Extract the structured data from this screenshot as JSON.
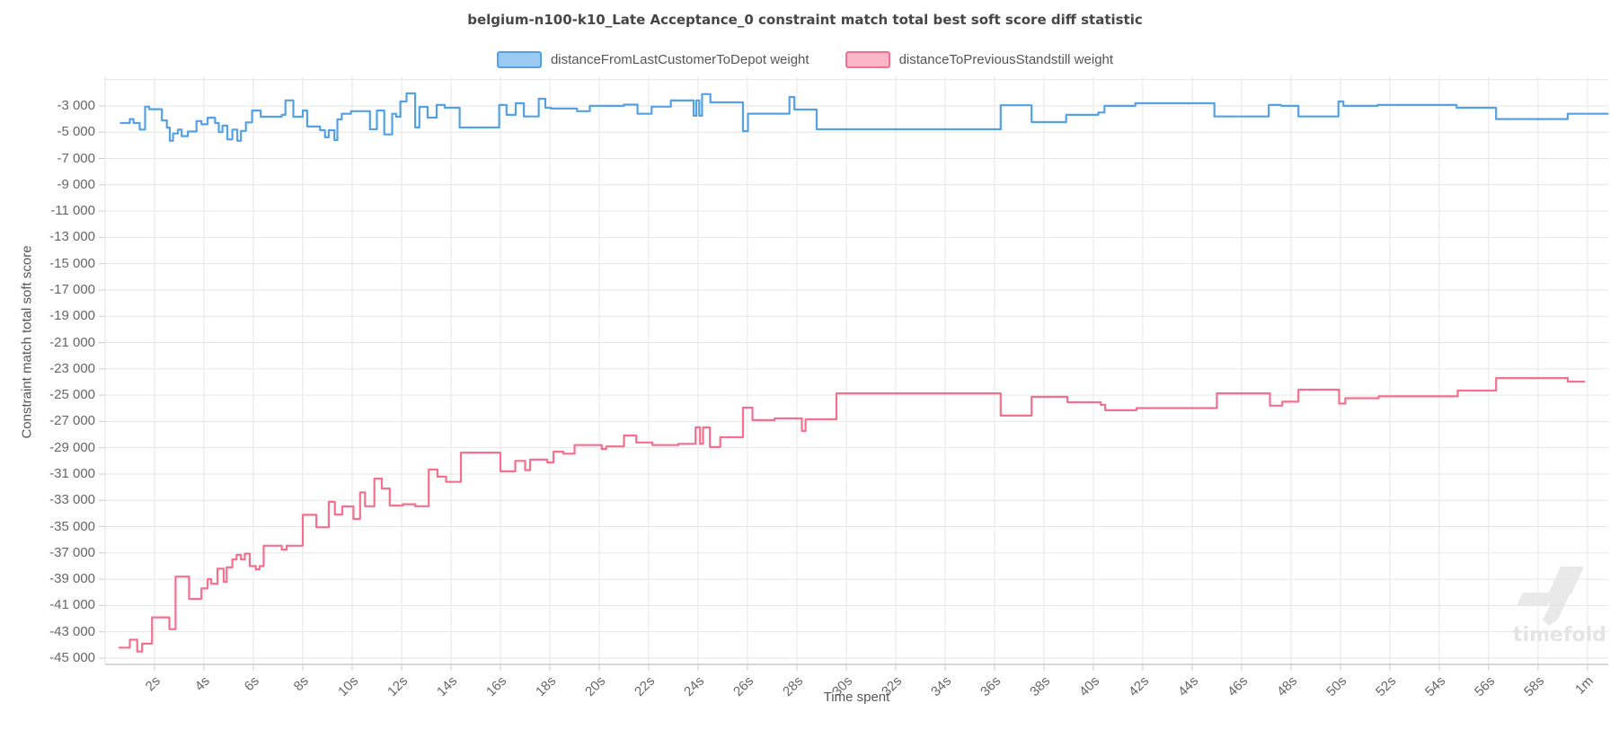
{
  "title": "belgium-n100-k10_Late Acceptance_0 constraint match total best soft score diff statistic",
  "watermark": "timefold",
  "legend": [
    {
      "label": "distanceFromLastCustomerToDepot weight",
      "fill": "#9ac9f1",
      "border": "#54a1e6"
    },
    {
      "label": "distanceToPreviousStandstill weight",
      "fill": "#f9b7c8",
      "border": "#f4708e"
    }
  ],
  "chart_data": {
    "type": "line",
    "step": true,
    "title": "belgium-n100-k10_Late Acceptance_0 constraint match total best soft score diff statistic",
    "xlabel": "Time spent",
    "ylabel": "Constraint match total soft score",
    "xlim": [
      0,
      60.84
    ],
    "ylim": [
      -45480,
      -750
    ],
    "grid": true,
    "legend_position": "top",
    "x_ticks": [
      {
        "t": 2,
        "label": "2s"
      },
      {
        "t": 4,
        "label": "4s"
      },
      {
        "t": 6,
        "label": "6s"
      },
      {
        "t": 8,
        "label": "8s"
      },
      {
        "t": 10,
        "label": "10s"
      },
      {
        "t": 12,
        "label": "12s"
      },
      {
        "t": 14,
        "label": "14s"
      },
      {
        "t": 16,
        "label": "16s"
      },
      {
        "t": 18,
        "label": "18s"
      },
      {
        "t": 20,
        "label": "20s"
      },
      {
        "t": 22,
        "label": "22s"
      },
      {
        "t": 24,
        "label": "24s"
      },
      {
        "t": 26,
        "label": "26s"
      },
      {
        "t": 28,
        "label": "28s"
      },
      {
        "t": 30,
        "label": "30s"
      },
      {
        "t": 32,
        "label": "32s"
      },
      {
        "t": 34,
        "label": "34s"
      },
      {
        "t": 36,
        "label": "36s"
      },
      {
        "t": 38,
        "label": "38s"
      },
      {
        "t": 40,
        "label": "40s"
      },
      {
        "t": 42,
        "label": "42s"
      },
      {
        "t": 44,
        "label": "44s"
      },
      {
        "t": 46,
        "label": "46s"
      },
      {
        "t": 48,
        "label": "48s"
      },
      {
        "t": 50,
        "label": "50s"
      },
      {
        "t": 52,
        "label": "52s"
      },
      {
        "t": 54,
        "label": "54s"
      },
      {
        "t": 56,
        "label": "56s"
      },
      {
        "t": 58,
        "label": "58s"
      },
      {
        "t": 60,
        "label": "1m"
      }
    ],
    "y_ticks": [
      {
        "v": -1000,
        "label": ""
      },
      {
        "v": -3000,
        "label": "-3 000"
      },
      {
        "v": -5000,
        "label": "-5 000"
      },
      {
        "v": -7000,
        "label": "-7 000"
      },
      {
        "v": -9000,
        "label": "-9 000"
      },
      {
        "v": -11000,
        "label": "-11 000"
      },
      {
        "v": -13000,
        "label": "-13 000"
      },
      {
        "v": -15000,
        "label": "-15 000"
      },
      {
        "v": -17000,
        "label": "-17 000"
      },
      {
        "v": -19000,
        "label": "-19 000"
      },
      {
        "v": -21000,
        "label": "-21 000"
      },
      {
        "v": -23000,
        "label": "-23 000"
      },
      {
        "v": -25000,
        "label": "-25 000"
      },
      {
        "v": -27000,
        "label": "-27 000"
      },
      {
        "v": -29000,
        "label": "-29 000"
      },
      {
        "v": -31000,
        "label": "-31 000"
      },
      {
        "v": -33000,
        "label": "-33 000"
      },
      {
        "v": -35000,
        "label": "-35 000"
      },
      {
        "v": -37000,
        "label": "-37 000"
      },
      {
        "v": -39000,
        "label": "-39 000"
      },
      {
        "v": -41000,
        "label": "-41 000"
      },
      {
        "v": -43000,
        "label": "-43 000"
      },
      {
        "v": -45000,
        "label": "-45 000"
      }
    ],
    "series": [
      {
        "name": "distanceFromLastCustomerToDepot weight",
        "color": "#54a1e6",
        "points": [
          [
            0.6,
            -4300
          ],
          [
            1.0,
            -4000
          ],
          [
            1.15,
            -4300
          ],
          [
            1.4,
            -4800
          ],
          [
            1.62,
            -3050
          ],
          [
            1.78,
            -3250
          ],
          [
            2.3,
            -4100
          ],
          [
            2.5,
            -4650
          ],
          [
            2.62,
            -5650
          ],
          [
            2.75,
            -5100
          ],
          [
            2.95,
            -4800
          ],
          [
            3.1,
            -5300
          ],
          [
            3.35,
            -4950
          ],
          [
            3.7,
            -4150
          ],
          [
            3.9,
            -4400
          ],
          [
            4.15,
            -3900
          ],
          [
            4.45,
            -4300
          ],
          [
            4.6,
            -5000
          ],
          [
            4.75,
            -4500
          ],
          [
            4.95,
            -5550
          ],
          [
            5.15,
            -4800
          ],
          [
            5.35,
            -5650
          ],
          [
            5.5,
            -4900
          ],
          [
            5.7,
            -4250
          ],
          [
            5.95,
            -3350
          ],
          [
            6.3,
            -3820
          ],
          [
            7.15,
            -3680
          ],
          [
            7.3,
            -2580
          ],
          [
            7.62,
            -3820
          ],
          [
            8.0,
            -3350
          ],
          [
            8.18,
            -4570
          ],
          [
            8.7,
            -4850
          ],
          [
            8.9,
            -5390
          ],
          [
            9.05,
            -4850
          ],
          [
            9.28,
            -5600
          ],
          [
            9.4,
            -4030
          ],
          [
            9.58,
            -3600
          ],
          [
            9.95,
            -3400
          ],
          [
            10.72,
            -4780
          ],
          [
            11.0,
            -3350
          ],
          [
            11.3,
            -5170
          ],
          [
            11.62,
            -3600
          ],
          [
            11.78,
            -3820
          ],
          [
            11.95,
            -2660
          ],
          [
            12.2,
            -2050
          ],
          [
            12.55,
            -4640
          ],
          [
            12.72,
            -3070
          ],
          [
            13.05,
            -3890
          ],
          [
            13.42,
            -2930
          ],
          [
            13.75,
            -3140
          ],
          [
            14.35,
            -4640
          ],
          [
            15.95,
            -2930
          ],
          [
            16.25,
            -3680
          ],
          [
            16.62,
            -2800
          ],
          [
            16.95,
            -3800
          ],
          [
            17.55,
            -2460
          ],
          [
            17.82,
            -3140
          ],
          [
            18.05,
            -3200
          ],
          [
            19.1,
            -3400
          ],
          [
            19.62,
            -3000
          ],
          [
            21.0,
            -2900
          ],
          [
            21.55,
            -3600
          ],
          [
            22.12,
            -3060
          ],
          [
            22.9,
            -2590
          ],
          [
            23.82,
            -3750
          ],
          [
            23.93,
            -2590
          ],
          [
            24.05,
            -3750
          ],
          [
            24.16,
            -2100
          ],
          [
            24.5,
            -2730
          ],
          [
            25.82,
            -4920
          ],
          [
            26.02,
            -3590
          ],
          [
            27.7,
            -2320
          ],
          [
            27.9,
            -3280
          ],
          [
            28.8,
            -4780
          ],
          [
            36.25,
            -2950
          ],
          [
            37.5,
            -4230
          ],
          [
            38.9,
            -3680
          ],
          [
            40.2,
            -3500
          ],
          [
            40.45,
            -3000
          ],
          [
            41.7,
            -2800
          ],
          [
            44.9,
            -3800
          ],
          [
            47.1,
            -2930
          ],
          [
            47.6,
            -3000
          ],
          [
            48.3,
            -3800
          ],
          [
            49.92,
            -2660
          ],
          [
            50.12,
            -3000
          ],
          [
            51.5,
            -2930
          ],
          [
            54.7,
            -3140
          ],
          [
            56.3,
            -4000
          ],
          [
            59.2,
            -3600
          ],
          [
            60.85,
            -3600
          ]
        ]
      },
      {
        "name": "distanceToPreviousStandstill weight",
        "color": "#f4708e",
        "points": [
          [
            0.55,
            -44200
          ],
          [
            1.0,
            -43600
          ],
          [
            1.3,
            -44500
          ],
          [
            1.5,
            -43900
          ],
          [
            1.9,
            -41900
          ],
          [
            2.6,
            -42800
          ],
          [
            2.85,
            -38800
          ],
          [
            3.4,
            -40500
          ],
          [
            3.9,
            -39700
          ],
          [
            4.15,
            -39000
          ],
          [
            4.3,
            -39350
          ],
          [
            4.55,
            -38200
          ],
          [
            4.8,
            -39200
          ],
          [
            4.92,
            -38100
          ],
          [
            5.15,
            -37500
          ],
          [
            5.32,
            -37150
          ],
          [
            5.5,
            -37500
          ],
          [
            5.65,
            -37050
          ],
          [
            5.85,
            -38000
          ],
          [
            6.1,
            -38250
          ],
          [
            6.25,
            -38000
          ],
          [
            6.42,
            -36450
          ],
          [
            7.15,
            -36750
          ],
          [
            7.35,
            -36450
          ],
          [
            8.0,
            -34100
          ],
          [
            8.55,
            -35050
          ],
          [
            9.05,
            -33120
          ],
          [
            9.3,
            -34080
          ],
          [
            9.6,
            -33460
          ],
          [
            10.05,
            -34420
          ],
          [
            10.32,
            -32400
          ],
          [
            10.52,
            -33450
          ],
          [
            10.9,
            -31350
          ],
          [
            11.2,
            -32100
          ],
          [
            11.52,
            -33400
          ],
          [
            12.05,
            -33300
          ],
          [
            12.55,
            -33450
          ],
          [
            13.1,
            -30660
          ],
          [
            13.45,
            -31200
          ],
          [
            13.8,
            -31600
          ],
          [
            14.4,
            -29370
          ],
          [
            16.0,
            -30800
          ],
          [
            16.6,
            -30000
          ],
          [
            17.0,
            -30700
          ],
          [
            17.2,
            -29900
          ],
          [
            17.9,
            -30120
          ],
          [
            18.15,
            -29300
          ],
          [
            18.55,
            -29450
          ],
          [
            19.0,
            -28800
          ],
          [
            20.1,
            -29100
          ],
          [
            20.28,
            -28900
          ],
          [
            21.0,
            -28070
          ],
          [
            21.5,
            -28600
          ],
          [
            22.15,
            -28800
          ],
          [
            23.2,
            -28700
          ],
          [
            23.9,
            -27450
          ],
          [
            24.08,
            -28700
          ],
          [
            24.2,
            -27450
          ],
          [
            24.48,
            -28950
          ],
          [
            24.9,
            -28200
          ],
          [
            25.82,
            -25950
          ],
          [
            26.2,
            -26900
          ],
          [
            27.1,
            -26770
          ],
          [
            28.2,
            -27720
          ],
          [
            28.35,
            -26840
          ],
          [
            29.6,
            -24860
          ],
          [
            36.25,
            -26560
          ],
          [
            37.5,
            -25130
          ],
          [
            38.95,
            -25540
          ],
          [
            40.3,
            -25740
          ],
          [
            40.48,
            -26150
          ],
          [
            41.75,
            -25980
          ],
          [
            45.0,
            -24860
          ],
          [
            47.15,
            -25800
          ],
          [
            47.65,
            -25500
          ],
          [
            48.3,
            -24580
          ],
          [
            49.95,
            -25640
          ],
          [
            50.2,
            -25230
          ],
          [
            51.55,
            -25090
          ],
          [
            54.75,
            -24650
          ],
          [
            56.3,
            -23700
          ],
          [
            59.2,
            -23970
          ],
          [
            59.9,
            -23970
          ]
        ]
      }
    ]
  }
}
